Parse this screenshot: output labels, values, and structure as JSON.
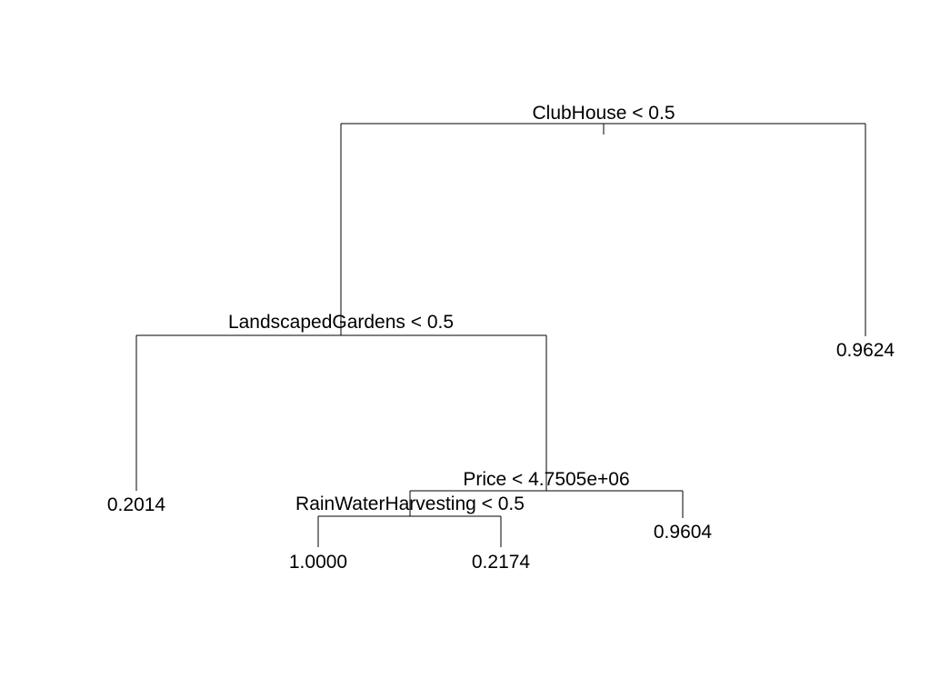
{
  "tree": {
    "splits": [
      {
        "id": "root",
        "label": "ClubHouse < 0.5"
      },
      {
        "id": "landscaped",
        "label": "LandscapedGardens < 0.5"
      },
      {
        "id": "price",
        "label": "Price < 4.7505e+06"
      },
      {
        "id": "rainwater",
        "label": "RainWaterHarvesting < 0.5"
      }
    ],
    "leaves": [
      {
        "id": "leaf-1",
        "label": "0.9624"
      },
      {
        "id": "leaf-2",
        "label": "0.2014"
      },
      {
        "id": "leaf-3",
        "label": "0.9604"
      },
      {
        "id": "leaf-4",
        "label": "1.0000"
      },
      {
        "id": "leaf-5",
        "label": "0.2174"
      }
    ]
  }
}
